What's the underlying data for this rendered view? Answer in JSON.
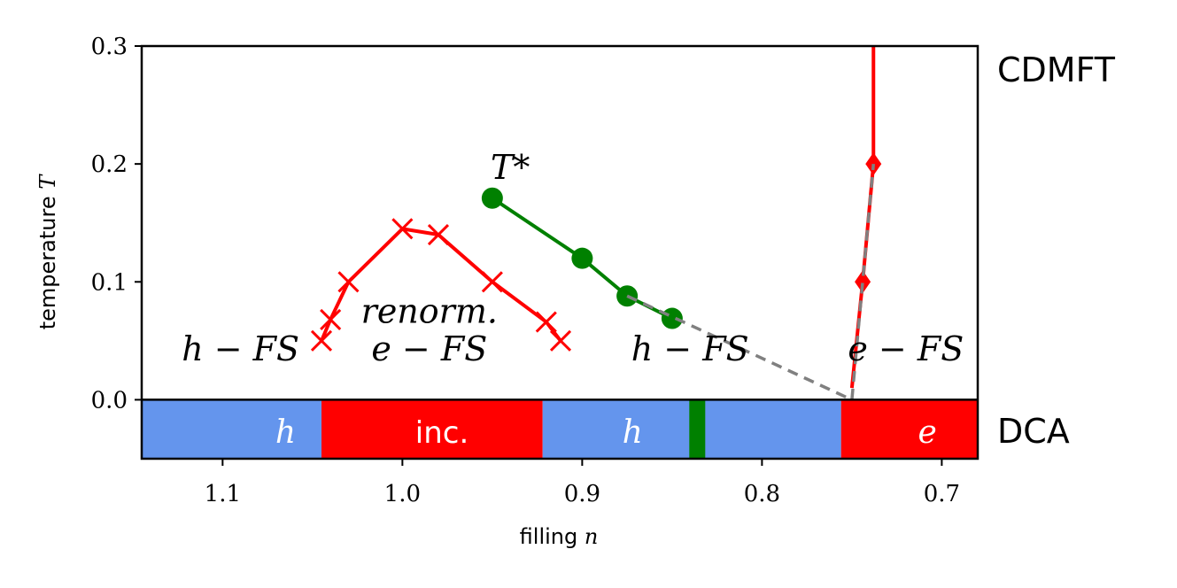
{
  "chart_data": {
    "type": "line",
    "xlabel_prefix": "filling ",
    "xlabel_var": "n",
    "ylabel_prefix": "temperature ",
    "ylabel_var": "T",
    "xlim": [
      1.145,
      0.68
    ],
    "ylim": [
      -0.05,
      0.3
    ],
    "xticks": [
      "1.1",
      "1.0",
      "0.9",
      "0.8",
      "0.7"
    ],
    "xtick_values": [
      1.1,
      1.0,
      0.9,
      0.8,
      0.7
    ],
    "yticks": [
      "0.0",
      "0.1",
      "0.2",
      "0.3"
    ],
    "ytick_values": [
      0.0,
      0.1,
      0.2,
      0.3
    ],
    "panel_labels": {
      "top": "CDMFT",
      "bottom": "DCA"
    },
    "series": [
      {
        "color": "#ff0000",
        "marker": "x",
        "points": [
          [
            1.045,
            0.05
          ],
          [
            1.04,
            0.068
          ],
          [
            1.03,
            0.1
          ],
          [
            1.0,
            0.145
          ],
          [
            0.98,
            0.14
          ],
          [
            0.95,
            0.1
          ],
          [
            0.92,
            0.066
          ],
          [
            0.912,
            0.05
          ]
        ]
      },
      {
        "color": "#008000",
        "marker": "o",
        "points": [
          [
            0.95,
            0.171
          ],
          [
            0.9,
            0.12
          ],
          [
            0.875,
            0.088
          ],
          [
            0.85,
            0.069
          ]
        ]
      },
      {
        "color": "#ff0000",
        "marker": "none",
        "points": [
          [
            0.738,
            0.3
          ],
          [
            0.738,
            0.2
          ],
          [
            0.744,
            0.1
          ],
          [
            0.75,
            0.01
          ]
        ]
      },
      {
        "color": "#ff0000",
        "marker": "diamond",
        "line": false,
        "points": [
          [
            0.738,
            0.2
          ],
          [
            0.744,
            0.1
          ]
        ]
      },
      {
        "color": "#808080",
        "dashed": true,
        "marker": "none",
        "points": [
          [
            0.875,
            0.088
          ],
          [
            0.75,
            0.0
          ],
          [
            0.738,
            0.2
          ]
        ]
      }
    ],
    "annotations": [
      {
        "text": "h − FS",
        "x": 1.09,
        "y": 0.043
      },
      {
        "text": "renorm.",
        "x": 0.985,
        "y": 0.075
      },
      {
        "text": "e − FS",
        "x": 0.985,
        "y": 0.043
      },
      {
        "text": "h − FS",
        "x": 0.84,
        "y": 0.043
      },
      {
        "text": "e − FS",
        "x": 0.72,
        "y": 0.043
      },
      {
        "text": "T*",
        "x": 0.94,
        "y": 0.197
      }
    ],
    "dca_bands": [
      {
        "from": 1.145,
        "to": 1.045,
        "color": "#6495ed",
        "label": "h",
        "label_x": 1.065,
        "italic": true
      },
      {
        "from": 1.045,
        "to": 0.922,
        "color": "#ff0000",
        "label": "inc.",
        "label_x": 0.978,
        "italic": false
      },
      {
        "from": 0.922,
        "to": 0.756,
        "color": "#6495ed",
        "label": "h",
        "label_x": 0.872,
        "italic": true
      },
      {
        "from": 0.756,
        "to": 0.68,
        "color": "#ff0000",
        "label": "e",
        "label_x": 0.708,
        "italic": true
      }
    ],
    "dca_marker": {
      "x": 0.836,
      "color": "#008000"
    }
  }
}
